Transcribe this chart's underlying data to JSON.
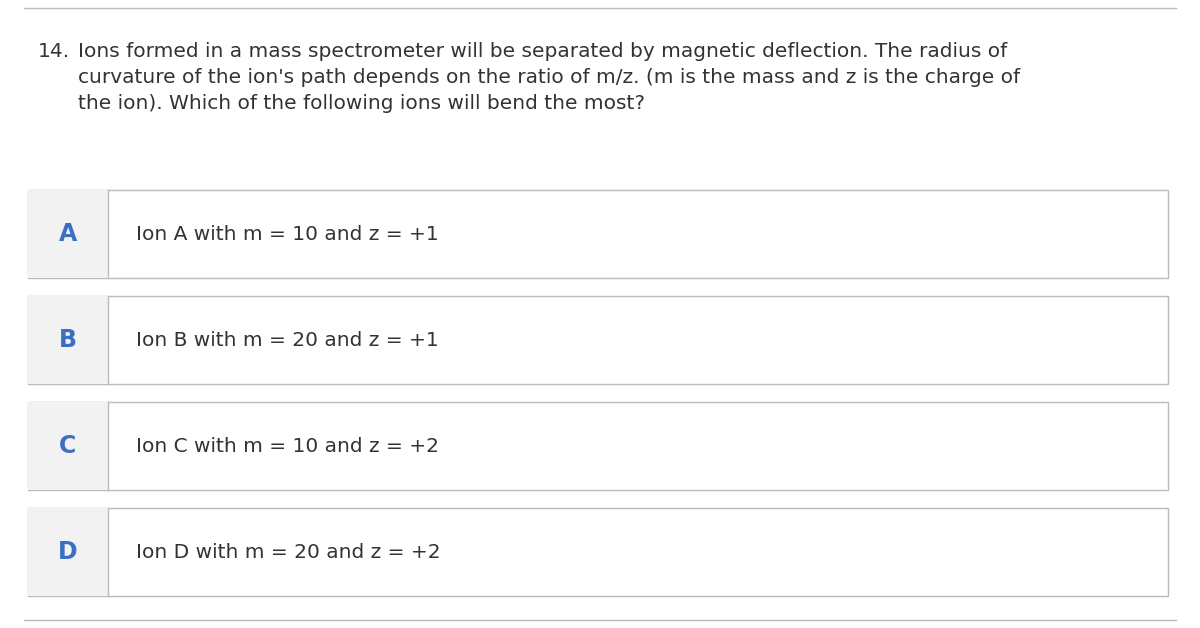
{
  "background_color": "#ffffff",
  "question_number": "14.",
  "question_text_line1": "Ions formed in a mass spectrometer will be separated by magnetic deflection. The radius of",
  "question_text_line2": "curvature of the ion's path depends on the ratio of m/z. (m is the mass and z is the charge of",
  "question_text_line3": "the ion). Which of the following ions will bend the most?",
  "options": [
    {
      "label": "A",
      "text": "Ion A with m = 10 and z = +1"
    },
    {
      "label": "B",
      "text": "Ion B with m = 20 and z = +1"
    },
    {
      "label": "C",
      "text": "Ion C with m = 10 and z = +2"
    },
    {
      "label": "D",
      "text": "Ion D with m = 20 and z = +2"
    }
  ],
  "label_color": "#3a6fc4",
  "text_color": "#333333",
  "question_color": "#333333",
  "font_size_question": 14.5,
  "font_size_option": 14.5,
  "font_size_label": 15,
  "outer_border_color": "#bbbbbb",
  "option_box_border_color": "#bbbbbb",
  "fig_width": 12.0,
  "fig_height": 6.28
}
